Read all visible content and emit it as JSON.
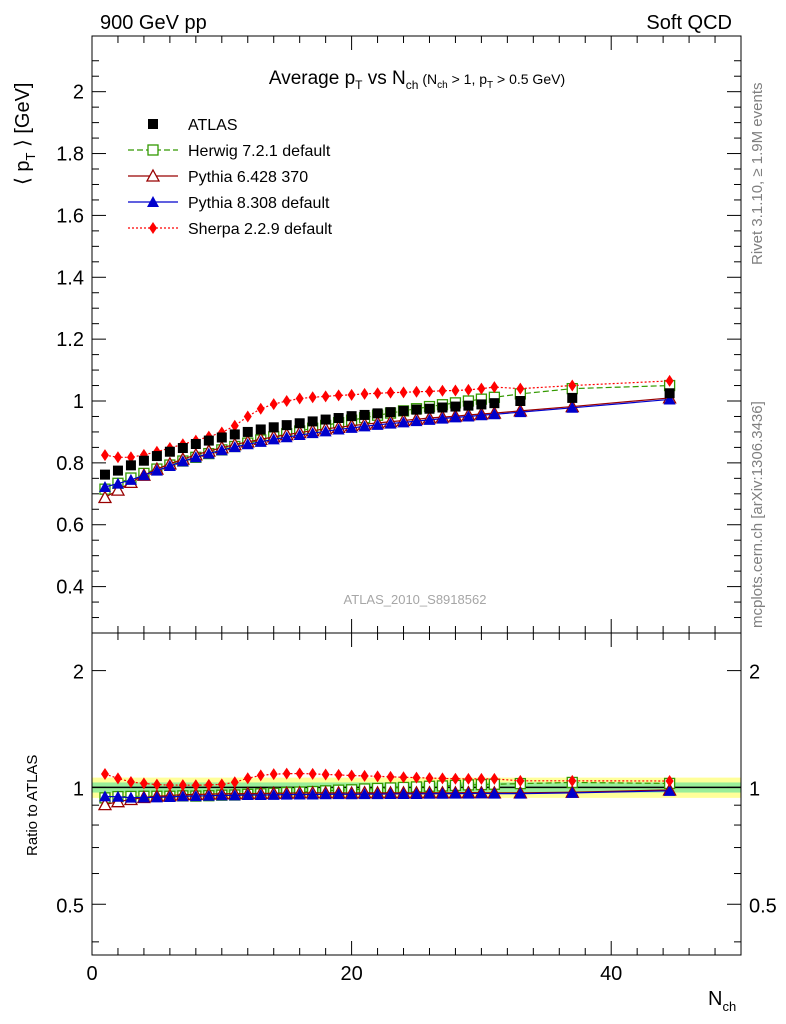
{
  "header": {
    "left_label": "900 GeV pp",
    "right_label": "Soft QCD"
  },
  "side_labels": {
    "rivet": "Rivet 3.1.10, ≥ 1.9M events",
    "mcplots": "mcplots.cern.ch [arXiv:1306.3436]"
  },
  "chart_data": {
    "type": "scatter",
    "title_main": "Average p",
    "title_main_sub": "T",
    "title_vs": " vs N",
    "title_vs_sub": "ch",
    "title_cuts_a": " (N",
    "title_cuts_a_sub": "ch",
    "title_cuts_b": " > 1, p",
    "title_cuts_b_sub": "T",
    "title_cuts_c": " > 0.5 GeV)",
    "ylabel_pre": "⟨ p",
    "ylabel_sub": "T",
    "ylabel_post": " ⟩  [GeV]",
    "ratio_ylabel": "Ratio to ATLAS",
    "xlabel_main": "N",
    "xlabel_sub": "ch",
    "watermark": "ATLAS_2010_S8918562",
    "xlim": [
      0,
      50
    ],
    "ylim": [
      0.25,
      2.18
    ],
    "ratio_ylim": [
      0.37,
      2.5
    ],
    "ratio_scale": "log",
    "x_ticks": [
      "0",
      "20",
      "40"
    ],
    "y_ticks": [
      "0.4",
      "0.6",
      "0.8",
      "1",
      "1.2",
      "1.4",
      "1.6",
      "1.8",
      "2"
    ],
    "ratio_y_ticks": [
      "0.5",
      "1",
      "2"
    ],
    "legend_position": "top-left",
    "x": [
      1,
      2,
      3,
      4,
      5,
      6,
      7,
      8,
      9,
      10,
      11,
      12,
      13,
      14,
      15,
      16,
      17,
      18,
      19,
      20,
      21,
      22,
      23,
      24,
      25,
      26,
      27,
      28,
      29,
      30,
      31,
      33,
      37,
      44.5
    ],
    "series": [
      {
        "name": "ATLAS",
        "color": "#000000",
        "marker": "square-filled",
        "line": "none",
        "values": [
          0.762,
          0.775,
          0.792,
          0.807,
          0.822,
          0.836,
          0.848,
          0.861,
          0.872,
          0.882,
          0.892,
          0.9,
          0.908,
          0.915,
          0.922,
          0.928,
          0.934,
          0.94,
          0.945,
          0.951,
          0.955,
          0.96,
          0.964,
          0.968,
          0.972,
          0.975,
          0.979,
          0.982,
          0.985,
          0.989,
          0.993,
          1.0,
          1.01,
          1.025
        ],
        "ratio": [
          1,
          1,
          1,
          1,
          1,
          1,
          1,
          1,
          1,
          1,
          1,
          1,
          1,
          1,
          1,
          1,
          1,
          1,
          1,
          1,
          1,
          1,
          1,
          1,
          1,
          1,
          1,
          1,
          1,
          1,
          1,
          1,
          1,
          1
        ],
        "band_inner": 0.03,
        "band_outer": 0.06
      },
      {
        "name": "Herwig 7.2.1 default",
        "color": "#339900",
        "marker": "square-open",
        "line": "dashed",
        "values": [
          0.715,
          0.734,
          0.751,
          0.766,
          0.78,
          0.793,
          0.806,
          0.818,
          0.83,
          0.842,
          0.853,
          0.864,
          0.874,
          0.884,
          0.894,
          0.903,
          0.912,
          0.921,
          0.93,
          0.938,
          0.946,
          0.954,
          0.961,
          0.968,
          0.975,
          0.982,
          0.988,
          0.994,
          1.0,
          1.006,
          1.012,
          1.023,
          1.04,
          1.05
        ],
        "ratio": [
          0.94,
          0.947,
          0.948,
          0.949,
          0.949,
          0.949,
          0.951,
          0.95,
          0.952,
          0.955,
          0.956,
          0.96,
          0.963,
          0.966,
          0.97,
          0.973,
          0.976,
          0.98,
          0.984,
          0.986,
          0.991,
          0.994,
          0.997,
          1.0,
          1.003,
          1.007,
          1.009,
          1.012,
          1.015,
          1.017,
          1.019,
          1.023,
          1.03,
          1.024
        ]
      },
      {
        "name": "Pythia 6.428 370",
        "color": "#990000",
        "marker": "triangle-open",
        "line": "solid",
        "values": [
          0.688,
          0.712,
          0.737,
          0.76,
          0.78,
          0.797,
          0.812,
          0.826,
          0.838,
          0.849,
          0.859,
          0.868,
          0.876,
          0.884,
          0.891,
          0.898,
          0.904,
          0.91,
          0.915,
          0.92,
          0.925,
          0.929,
          0.933,
          0.937,
          0.941,
          0.945,
          0.948,
          0.951,
          0.955,
          0.958,
          0.961,
          0.968,
          0.982,
          1.01
        ],
        "ratio": [
          0.903,
          0.919,
          0.931,
          0.942,
          0.949,
          0.953,
          0.958,
          0.959,
          0.961,
          0.963,
          0.963,
          0.964,
          0.965,
          0.966,
          0.966,
          0.968,
          0.968,
          0.968,
          0.968,
          0.967,
          0.969,
          0.968,
          0.968,
          0.968,
          0.968,
          0.969,
          0.968,
          0.968,
          0.97,
          0.969,
          0.968,
          0.968,
          0.972,
          0.985
        ]
      },
      {
        "name": "Pythia 8.308 default",
        "color": "#0000cc",
        "marker": "triangle-filled",
        "line": "solid",
        "values": [
          0.722,
          0.733,
          0.745,
          0.76,
          0.775,
          0.79,
          0.805,
          0.818,
          0.83,
          0.841,
          0.851,
          0.86,
          0.868,
          0.876,
          0.883,
          0.89,
          0.896,
          0.902,
          0.908,
          0.913,
          0.918,
          0.923,
          0.927,
          0.931,
          0.935,
          0.939,
          0.943,
          0.947,
          0.95,
          0.954,
          0.957,
          0.964,
          0.978,
          1.005
        ],
        "ratio": [
          0.948,
          0.946,
          0.941,
          0.942,
          0.943,
          0.945,
          0.949,
          0.95,
          0.952,
          0.954,
          0.954,
          0.956,
          0.956,
          0.957,
          0.958,
          0.959,
          0.959,
          0.96,
          0.961,
          0.96,
          0.961,
          0.961,
          0.962,
          0.962,
          0.962,
          0.963,
          0.963,
          0.964,
          0.964,
          0.965,
          0.964,
          0.964,
          0.968,
          0.98
        ]
      },
      {
        "name": "Sherpa 2.2.9 default",
        "color": "#ff0000",
        "marker": "diamond-filled",
        "line": "dotted",
        "values": [
          0.825,
          0.818,
          0.818,
          0.826,
          0.836,
          0.848,
          0.86,
          0.872,
          0.885,
          0.898,
          0.92,
          0.95,
          0.975,
          0.99,
          1.0,
          1.008,
          1.012,
          1.015,
          1.018,
          1.02,
          1.023,
          1.025,
          1.027,
          1.028,
          1.03,
          1.031,
          1.033,
          1.034,
          1.036,
          1.04,
          1.045,
          1.04,
          1.05,
          1.065
        ],
        "ratio": [
          1.083,
          1.055,
          1.033,
          1.024,
          1.017,
          1.014,
          1.014,
          1.013,
          1.015,
          1.018,
          1.031,
          1.056,
          1.074,
          1.082,
          1.085,
          1.086,
          1.084,
          1.08,
          1.077,
          1.073,
          1.071,
          1.068,
          1.065,
          1.062,
          1.06,
          1.057,
          1.055,
          1.053,
          1.052,
          1.052,
          1.052,
          1.04,
          1.04,
          1.039
        ]
      }
    ]
  }
}
